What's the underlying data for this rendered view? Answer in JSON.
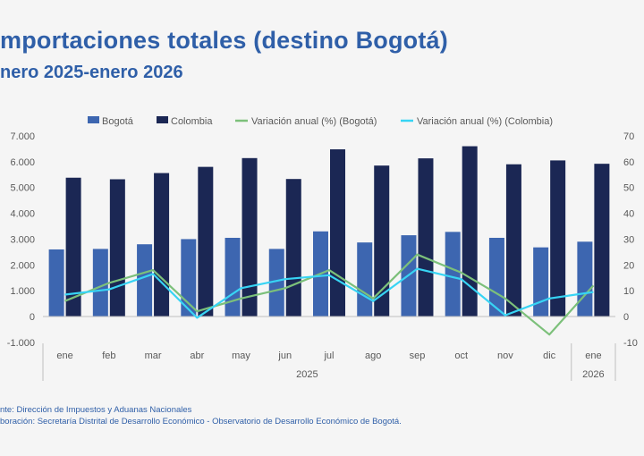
{
  "header": {
    "title": "mportaciones totales (destino Bogotá)",
    "subtitle": "nero 2025-enero 2026"
  },
  "footer": {
    "source": "nte: Dirección de Impuestos y Aduanas Nacionales",
    "elaboration": "boración: Secretaría Distrital de Desarrollo Económico - Observatorio de Desarrollo Económico de Bogotá."
  },
  "colors": {
    "bogota_bar": "#3d66b0",
    "colombia_bar": "#1b2754",
    "bogota_line": "#7cc07a",
    "colombia_line": "#37d4f4"
  },
  "chart_data": {
    "type": "bar",
    "categories": [
      "ene",
      "feb",
      "mar",
      "abr",
      "may",
      "jun",
      "jul",
      "ago",
      "sep",
      "oct",
      "nov",
      "dic",
      "ene"
    ],
    "year_groups": [
      {
        "label": "2025",
        "start": 0,
        "end": 11
      },
      {
        "label": "2026",
        "start": 12,
        "end": 12
      }
    ],
    "series": [
      {
        "name": "Bogotá",
        "kind": "bar",
        "axis": "left",
        "values": [
          2600,
          2620,
          2800,
          3000,
          3050,
          2620,
          3300,
          2870,
          3150,
          3280,
          3050,
          2680,
          2900
        ]
      },
      {
        "name": "Colombia",
        "kind": "bar",
        "axis": "left",
        "values": [
          5380,
          5320,
          5560,
          5800,
          6140,
          5330,
          6480,
          5850,
          6130,
          6600,
          5900,
          6050,
          5920
        ]
      },
      {
        "name": "Variación anual (%) (Bogotá)",
        "kind": "line",
        "axis": "right",
        "values": [
          6,
          13,
          18,
          2,
          7,
          11,
          18,
          7,
          24,
          17,
          7,
          -7,
          12
        ]
      },
      {
        "name": "Variación anual (%) (Colombia)",
        "kind": "line",
        "axis": "right",
        "values": [
          8.5,
          10.5,
          16.5,
          -0.5,
          11,
          14.5,
          16,
          6,
          18.5,
          14.5,
          0.5,
          7,
          9.5
        ]
      }
    ],
    "ylim_left": [
      -1000,
      7000
    ],
    "ylim_right": [
      -10,
      70
    ],
    "yticks_left": [
      "-1.000",
      "0",
      "1.000",
      "2.000",
      "3.000",
      "4.000",
      "5.000",
      "6.000",
      "7.000"
    ],
    "yticks_right": [
      "-10",
      "0",
      "10",
      "20",
      "30",
      "40",
      "50",
      "60",
      "70"
    ],
    "legend_position": "top",
    "grid": false
  }
}
